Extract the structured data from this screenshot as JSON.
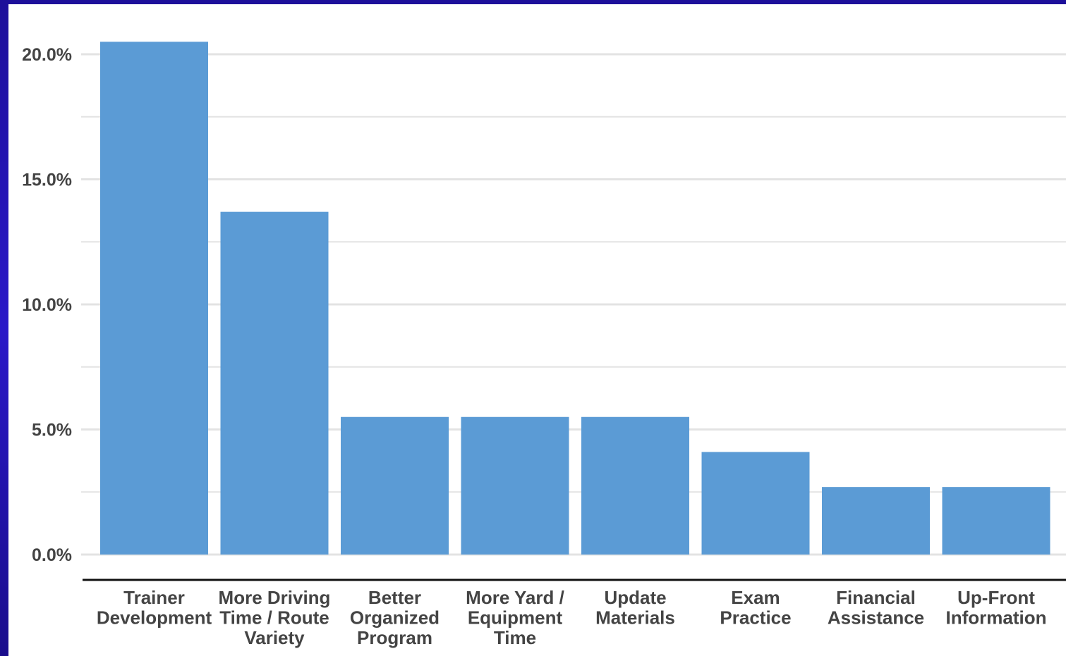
{
  "chart_data": {
    "type": "bar",
    "title": "",
    "xlabel": "",
    "ylabel": "",
    "categories": [
      [
        "Trainer",
        "Development"
      ],
      [
        "More Driving",
        "Time / Route",
        "Variety"
      ],
      [
        "Better",
        "Organized",
        "Program"
      ],
      [
        "More Yard /",
        "Equipment",
        "Time"
      ],
      [
        "Update",
        "Materials"
      ],
      [
        "Exam",
        "Practice"
      ],
      [
        "Financial",
        "Assistance"
      ],
      [
        "Up-Front",
        "Information"
      ]
    ],
    "values": [
      20.5,
      13.7,
      5.5,
      5.5,
      5.5,
      4.1,
      2.7,
      2.7
    ],
    "ylim": [
      0,
      21.5
    ],
    "yticks": [
      "0.0%",
      "5.0%",
      "10.0%",
      "15.0%",
      "20.0%"
    ],
    "ytick_values": [
      0,
      5,
      10,
      15,
      20
    ],
    "grid": true,
    "legend": "none",
    "bar_color": "#5b9bd5",
    "gridline_color": "#e3e3e3",
    "axis_color": "#111111",
    "background_color": "#ffffff",
    "border_color": "#2a18c8"
  }
}
